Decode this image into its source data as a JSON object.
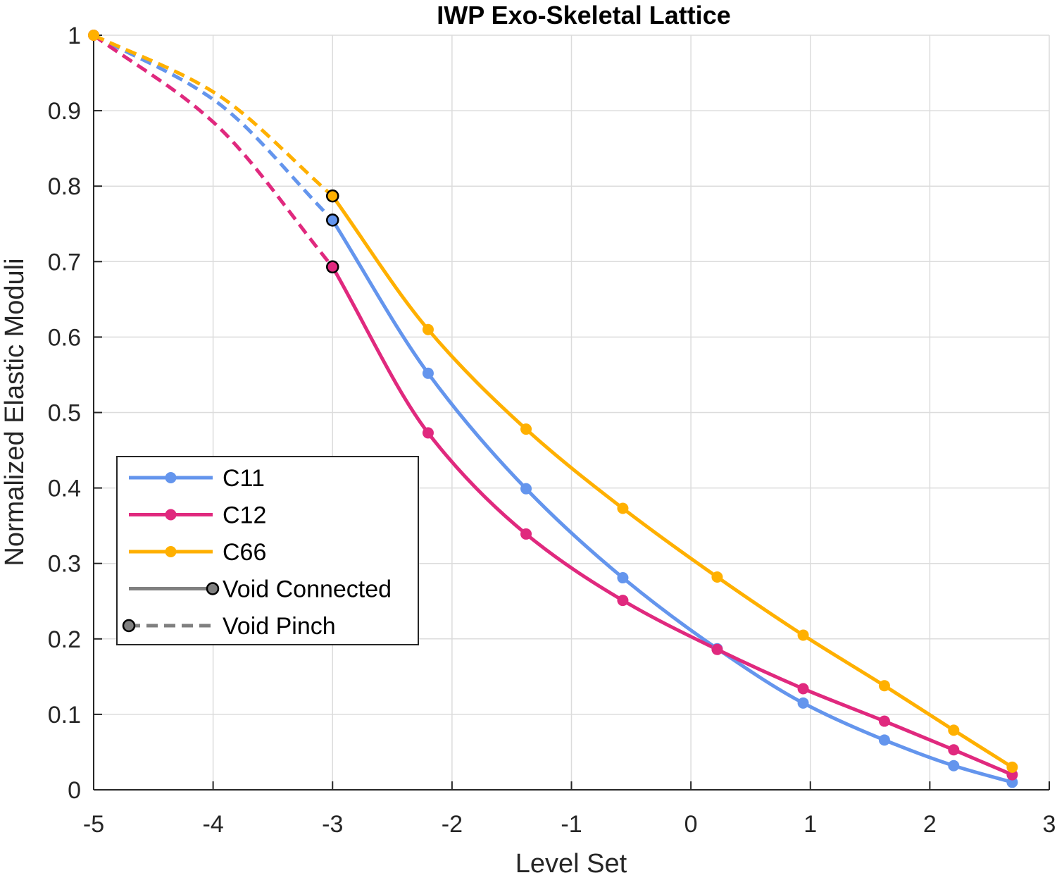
{
  "chart_data": {
    "type": "line",
    "title": "IWP Exo-Skeletal Lattice",
    "xlabel": "Level Set",
    "ylabel": "Normalized Elastic Moduli",
    "xlim": [
      -5,
      3
    ],
    "ylim": [
      0,
      1
    ],
    "xticks": [
      -5,
      -4,
      -3,
      -2,
      -1,
      0,
      1,
      2,
      3
    ],
    "xtick_labels": [
      "-5",
      "-4",
      "-3",
      "-2",
      "-1",
      "0",
      "1",
      "2",
      "3"
    ],
    "yticks": [
      0,
      0.1,
      0.2,
      0.3,
      0.4,
      0.5,
      0.6,
      0.7,
      0.8,
      0.9,
      1
    ],
    "ytick_labels": [
      "0",
      "0.1",
      "0.2",
      "0.3",
      "0.4",
      "0.5",
      "0.6",
      "0.7",
      "0.8",
      "0.9",
      "1"
    ],
    "grid": true,
    "legend_position": "lower-left",
    "series": [
      {
        "name": "C11",
        "color": "#6495ED",
        "pinch": {
          "x": [
            -5,
            -4,
            -3
          ],
          "y": [
            1.0,
            0.915,
            0.755
          ]
        },
        "connected": {
          "x": [
            -3,
            -2.2,
            -1.38,
            -0.57,
            0.22,
            0.94,
            1.62,
            2.2,
            2.69
          ],
          "y": [
            0.755,
            0.552,
            0.399,
            0.281,
            0.187,
            0.115,
            0.066,
            0.032,
            0.01
          ]
        }
      },
      {
        "name": "C12",
        "color": "#E0297E",
        "pinch": {
          "x": [
            -5,
            -4,
            -3
          ],
          "y": [
            1.0,
            0.885,
            0.693
          ]
        },
        "connected": {
          "x": [
            -3,
            -2.2,
            -1.38,
            -0.57,
            0.22,
            0.94,
            1.62,
            2.2,
            2.69
          ],
          "y": [
            0.693,
            0.473,
            0.339,
            0.251,
            0.186,
            0.134,
            0.091,
            0.053,
            0.02
          ]
        }
      },
      {
        "name": "C66",
        "color": "#FFB000",
        "pinch": {
          "x": [
            -5,
            -4,
            -3
          ],
          "y": [
            1.0,
            0.925,
            0.787
          ]
        },
        "connected": {
          "x": [
            -3,
            -2.2,
            -1.38,
            -0.57,
            0.22,
            0.94,
            1.62,
            2.2,
            2.69
          ],
          "y": [
            0.787,
            0.61,
            0.478,
            0.373,
            0.282,
            0.205,
            0.138,
            0.079,
            0.03
          ]
        }
      }
    ],
    "transition_markers_x": -3,
    "line_styles": [
      {
        "name": "Void Connected",
        "dash": "solid",
        "marker_side": "end"
      },
      {
        "name": "Void Pinch",
        "dash": "dashed",
        "marker_side": "start"
      }
    ],
    "style_legend_color": "#808080"
  }
}
